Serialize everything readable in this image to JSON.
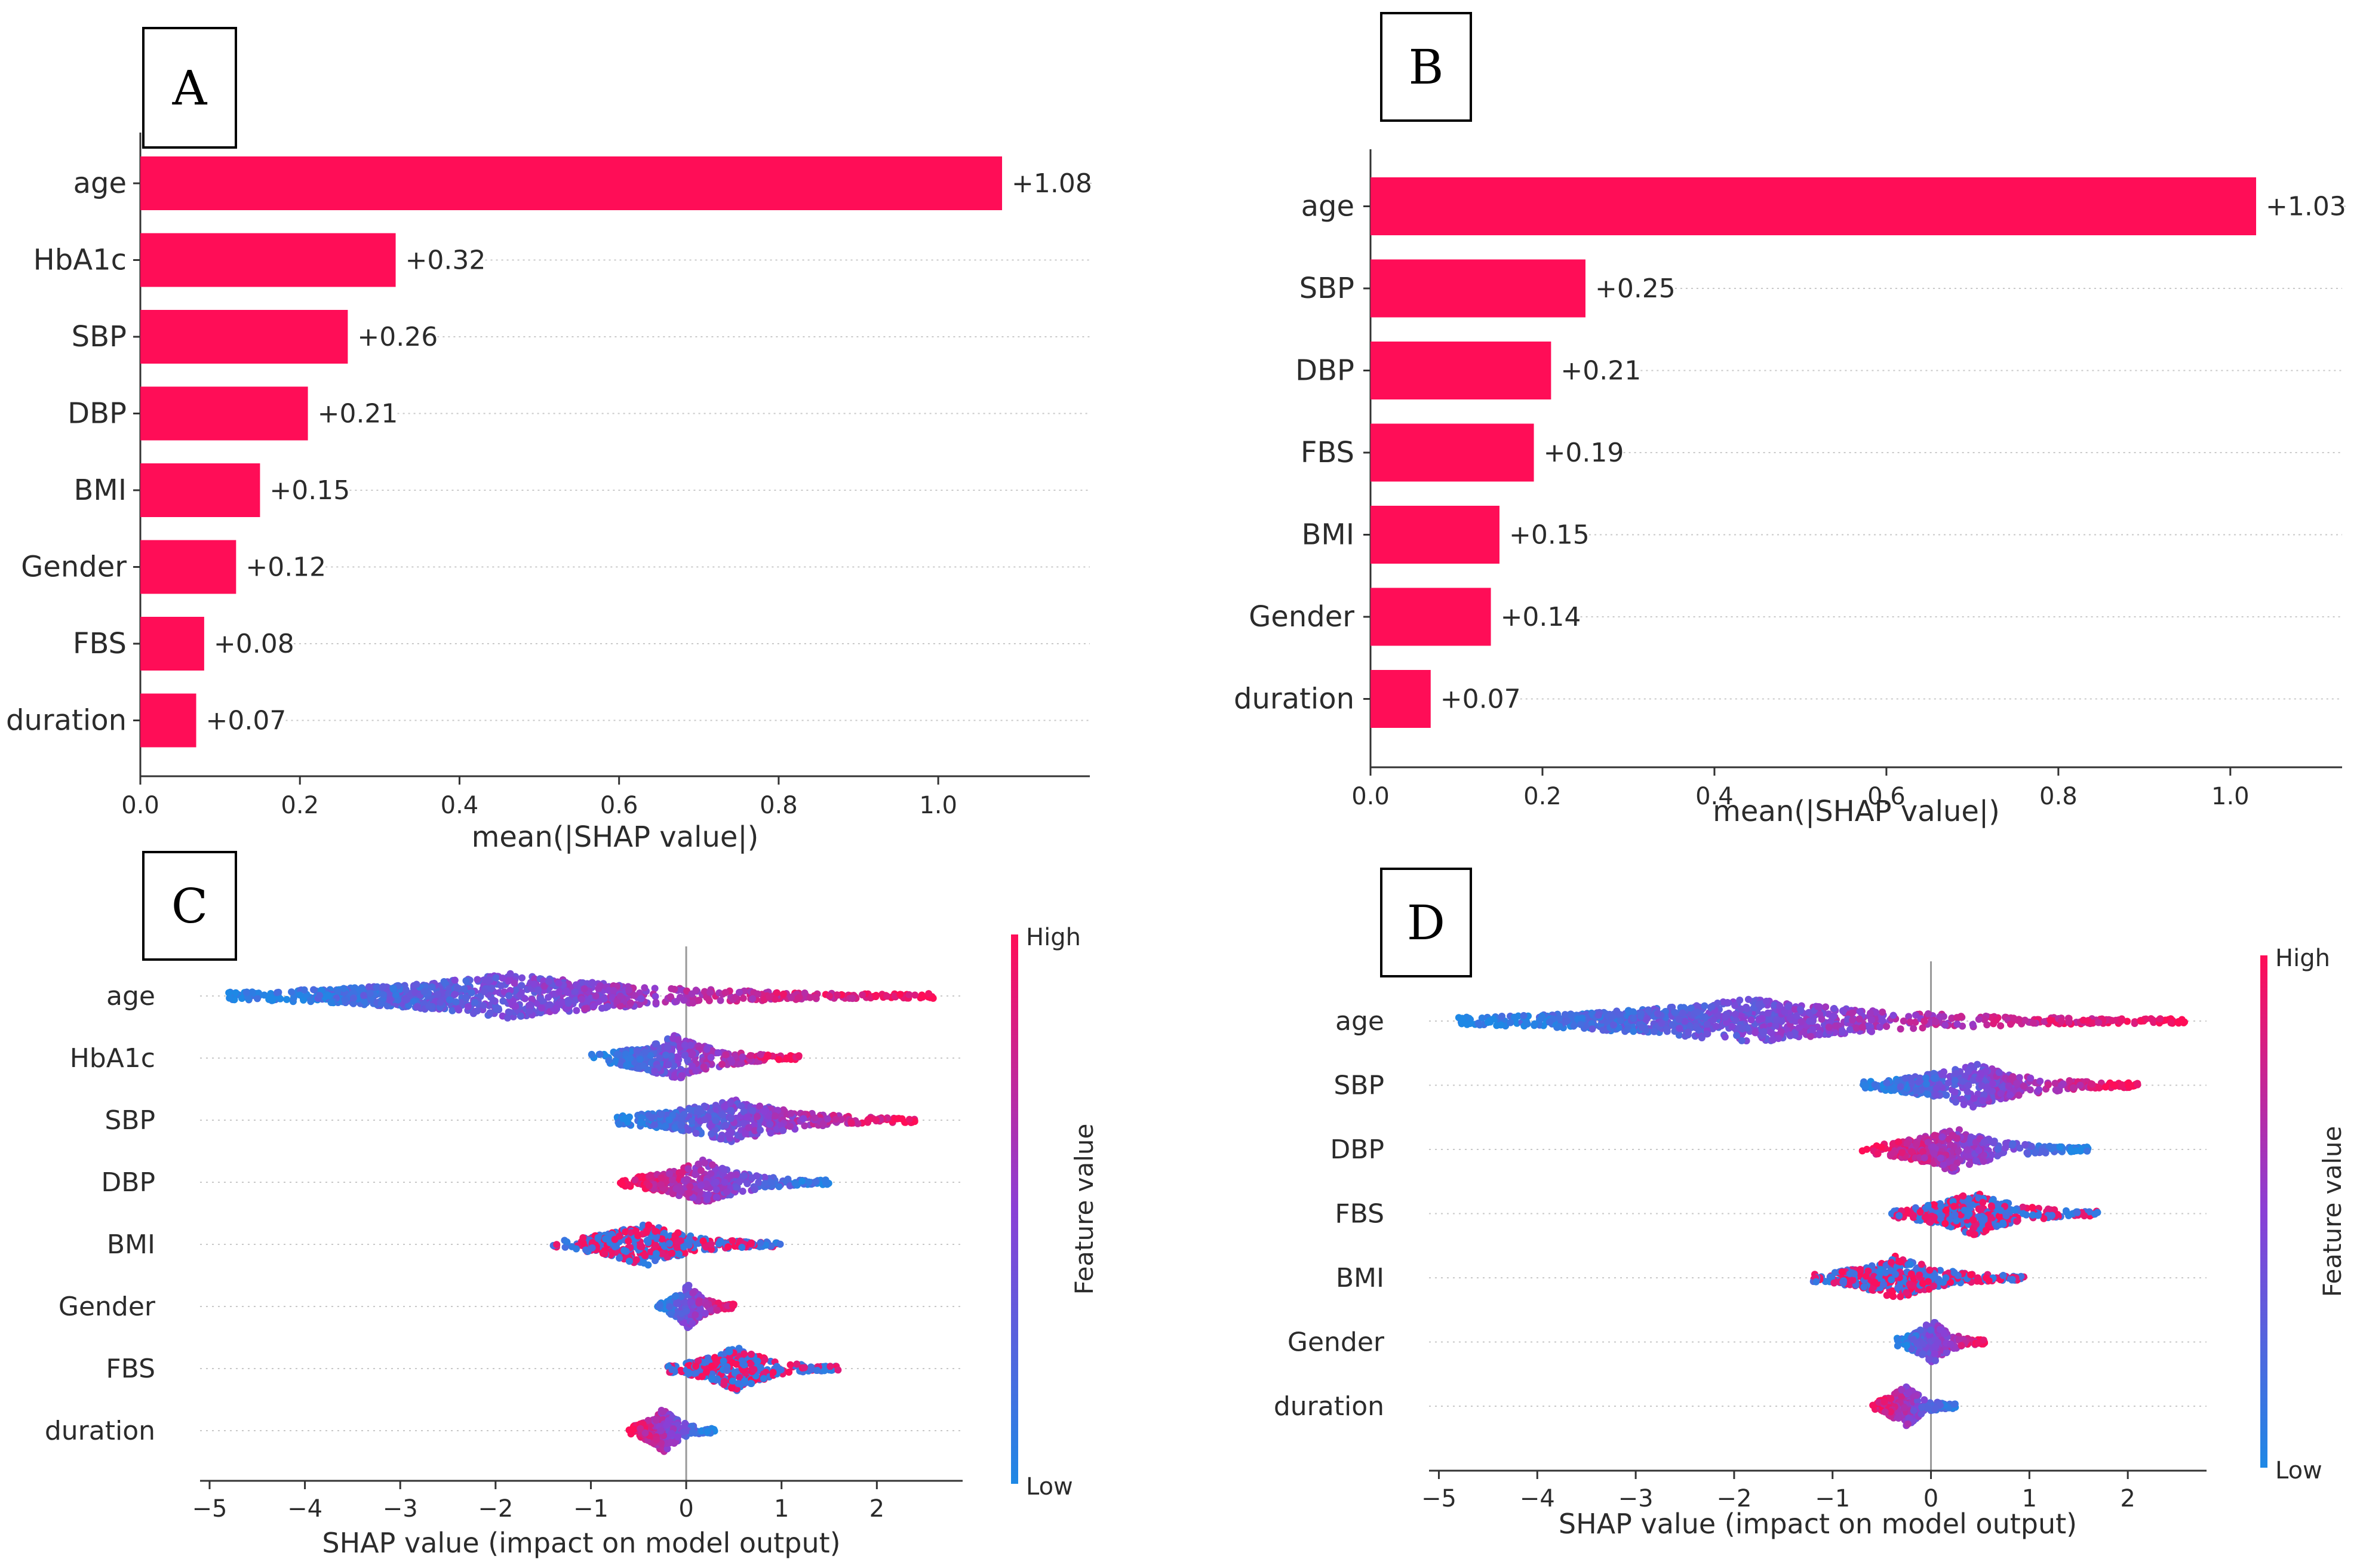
{
  "colors": {
    "bar": "#ff0d57",
    "value_label": "#cc1262",
    "axis": "#333333",
    "grid": "#c8c8c8",
    "cb_high": "#ff0d57",
    "cb_mid": "#8a3fd6",
    "cb_low": "#1e88e5"
  },
  "chart_data": [
    {
      "panel": "A",
      "type": "bar",
      "orientation": "horizontal",
      "categories": [
        "age",
        "HbA1c",
        "SBP",
        "DBP",
        "BMI",
        "Gender",
        "FBS",
        "duration"
      ],
      "values": [
        1.08,
        0.32,
        0.26,
        0.21,
        0.15,
        0.12,
        0.08,
        0.07
      ],
      "value_labels": [
        "+1.08",
        "+0.32",
        "+0.26",
        "+0.21",
        "+0.15",
        "+0.12",
        "+0.08",
        "+0.07"
      ],
      "xlabel": "mean(|SHAP value|)",
      "xticks": [
        0.0,
        0.2,
        0.4,
        0.6,
        0.8,
        1.0
      ],
      "xtick_labels": [
        "0.0",
        "0.2",
        "0.4",
        "0.6",
        "0.8",
        "1.0"
      ],
      "xlim": [
        0,
        1.19
      ]
    },
    {
      "panel": "B",
      "type": "bar",
      "orientation": "horizontal",
      "categories": [
        "age",
        "SBP",
        "DBP",
        "FBS",
        "BMI",
        "Gender",
        "duration"
      ],
      "values": [
        1.03,
        0.25,
        0.21,
        0.19,
        0.15,
        0.14,
        0.07
      ],
      "value_labels": [
        "+1.03",
        "+0.25",
        "+0.21",
        "+0.19",
        "+0.15",
        "+0.14",
        "+0.07"
      ],
      "xlabel": "mean(|SHAP value|)",
      "xticks": [
        0.0,
        0.2,
        0.4,
        0.6,
        0.8,
        1.0
      ],
      "xtick_labels": [
        "0.0",
        "0.2",
        "0.4",
        "0.6",
        "0.8",
        "1.0"
      ],
      "xlim": [
        0,
        1.13
      ]
    },
    {
      "panel": "C",
      "type": "scatter",
      "subtype": "shap-beeswarm",
      "features": [
        {
          "name": "age",
          "min": -4.8,
          "max": 2.6,
          "color_trend": "pos"
        },
        {
          "name": "HbA1c",
          "min": -1.0,
          "max": 1.2,
          "color_trend": "pos"
        },
        {
          "name": "SBP",
          "min": -0.8,
          "max": 2.4,
          "color_trend": "pos"
        },
        {
          "name": "DBP",
          "min": -0.7,
          "max": 1.5,
          "color_trend": "neg"
        },
        {
          "name": "BMI",
          "min": -1.4,
          "max": 1.0,
          "color_trend": "mixed"
        },
        {
          "name": "Gender",
          "min": -0.3,
          "max": 0.5,
          "color_trend": "pos"
        },
        {
          "name": "FBS",
          "min": -0.2,
          "max": 1.6,
          "color_trend": "mixed"
        },
        {
          "name": "duration",
          "min": -0.6,
          "max": 0.3,
          "color_trend": "neg"
        }
      ],
      "xlabel": "SHAP value (impact on model output)",
      "xticks": [
        -5,
        -4,
        -3,
        -2,
        -1,
        0,
        1,
        2
      ],
      "xtick_labels": [
        "−5",
        "−4",
        "−3",
        "−2",
        "−1",
        "0",
        "1",
        "2"
      ],
      "xlim": [
        -5.1,
        2.9
      ],
      "colorbar": {
        "high": "High",
        "low": "Low",
        "label": "Feature value"
      }
    },
    {
      "panel": "D",
      "type": "scatter",
      "subtype": "shap-beeswarm",
      "features": [
        {
          "name": "age",
          "min": -4.8,
          "max": 2.6,
          "color_trend": "pos"
        },
        {
          "name": "SBP",
          "min": -0.7,
          "max": 2.1,
          "color_trend": "pos"
        },
        {
          "name": "DBP",
          "min": -0.7,
          "max": 1.6,
          "color_trend": "neg"
        },
        {
          "name": "FBS",
          "min": -0.4,
          "max": 1.7,
          "color_trend": "mixed"
        },
        {
          "name": "BMI",
          "min": -1.2,
          "max": 0.95,
          "color_trend": "mixed"
        },
        {
          "name": "Gender",
          "min": -0.35,
          "max": 0.55,
          "color_trend": "pos"
        },
        {
          "name": "duration",
          "min": -0.6,
          "max": 0.25,
          "color_trend": "neg"
        }
      ],
      "xlabel": "SHAP value (impact on model output)",
      "xticks": [
        -5,
        -4,
        -3,
        -2,
        -1,
        0,
        1,
        2
      ],
      "xtick_labels": [
        "−5",
        "−4",
        "−3",
        "−2",
        "−1",
        "0",
        "1",
        "2"
      ],
      "xlim": [
        -5.1,
        2.8
      ],
      "colorbar": {
        "high": "High",
        "low": "Low",
        "label": "Feature value"
      }
    }
  ]
}
